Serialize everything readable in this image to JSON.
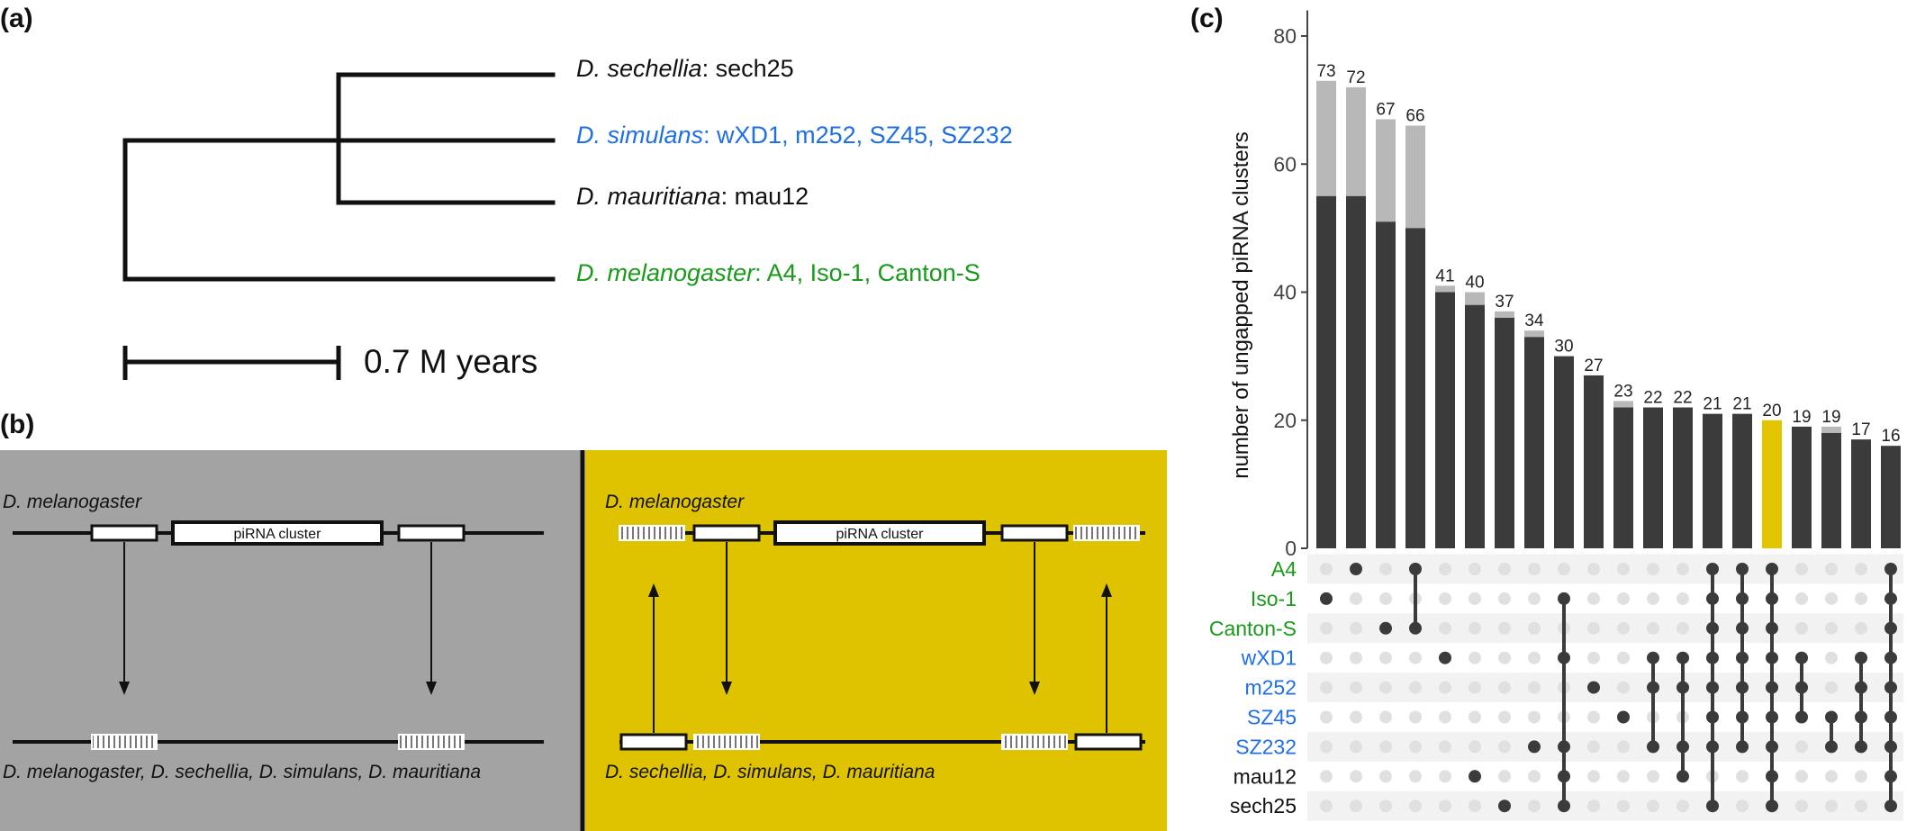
{
  "colors": {
    "black": "#111111",
    "green": "#1a9a1a",
    "blue": "#1f6fe6",
    "grey_panel": "#a3a3a3",
    "yellow_panel": "#dfc300",
    "bar_dark": "#3b3b3b",
    "bar_light": "#b8b8b8",
    "bar_highlight": "#e3c400",
    "dot_bg": "#e0e0e0",
    "stripe": "#f2f2f2"
  },
  "panel_a": {
    "label": "(a)",
    "taxa": [
      {
        "species": "D. sechellia",
        "strains": ": sech25",
        "color": "black"
      },
      {
        "species": "D. simulans",
        "strains": ": wXD1, m252, SZ45, SZ232",
        "color": "blue"
      },
      {
        "species": "D. mauritiana",
        "strains": ": mau12",
        "color": "black"
      },
      {
        "species": "D. melanogaster",
        "strains": ": A4, Iso-1, Canton-S",
        "color": "green"
      }
    ],
    "scale_label": "0.7 M years"
  },
  "panel_b": {
    "label": "(b)",
    "left": {
      "top_label": "D. melanogaster",
      "cluster_label": "piRNA cluster",
      "bottom_label": "D. melanogaster, D. sechellia, D. simulans, D. mauritiana"
    },
    "right": {
      "top_label": "D. melanogaster",
      "cluster_label": "piRNA cluster",
      "bottom_label": "D. sechellia, D. simulans, D. mauritiana"
    }
  },
  "panel_c": {
    "label": "(c)",
    "ylabel": "number of ungapped piRNA clusters",
    "y_ticks": [
      0,
      20,
      40,
      60,
      80
    ],
    "sets": [
      {
        "name": "A4",
        "color": "green"
      },
      {
        "name": "Iso-1",
        "color": "green"
      },
      {
        "name": "Canton-S",
        "color": "green"
      },
      {
        "name": "wXD1",
        "color": "blue"
      },
      {
        "name": "m252",
        "color": "blue"
      },
      {
        "name": "SZ45",
        "color": "blue"
      },
      {
        "name": "SZ232",
        "color": "blue"
      },
      {
        "name": "mau12",
        "color": "black"
      },
      {
        "name": "sech25",
        "color": "black"
      }
    ]
  },
  "chart_data": {
    "type": "bar",
    "subtype": "upset",
    "ylabel": "number of ungapped piRNA clusters",
    "ylim": [
      0,
      84
    ],
    "sets": [
      "A4",
      "Iso-1",
      "Canton-S",
      "wXD1",
      "m252",
      "SZ45",
      "SZ232",
      "mau12",
      "sech25"
    ],
    "totals": [
      73,
      72,
      67,
      66,
      41,
      40,
      37,
      34,
      30,
      27,
      23,
      22,
      22,
      21,
      21,
      20,
      19,
      19,
      17,
      16
    ],
    "dark_values": [
      55,
      55,
      51,
      50,
      40,
      38,
      36,
      33,
      30,
      27,
      22,
      22,
      22,
      21,
      21,
      20,
      19,
      18,
      17,
      16
    ],
    "highlight_index": 15,
    "intersections": [
      [
        1
      ],
      [
        0
      ],
      [
        2
      ],
      [
        0,
        2
      ],
      [
        3
      ],
      [
        7
      ],
      [
        8
      ],
      [
        6
      ],
      [
        1,
        3,
        6,
        7,
        8
      ],
      [
        4
      ],
      [
        5
      ],
      [
        3,
        4,
        6
      ],
      [
        3,
        4,
        6,
        7
      ],
      [
        0,
        1,
        2,
        3,
        4,
        5,
        6,
        8
      ],
      [
        0,
        1,
        2,
        3,
        4,
        5,
        6
      ],
      [
        0,
        1,
        2,
        3,
        4,
        5,
        6,
        7,
        8
      ],
      [
        3,
        4,
        5
      ],
      [
        5,
        6
      ],
      [
        3,
        4,
        5,
        6
      ],
      [
        0,
        1,
        2,
        3,
        4,
        5,
        6,
        7,
        8
      ]
    ]
  }
}
